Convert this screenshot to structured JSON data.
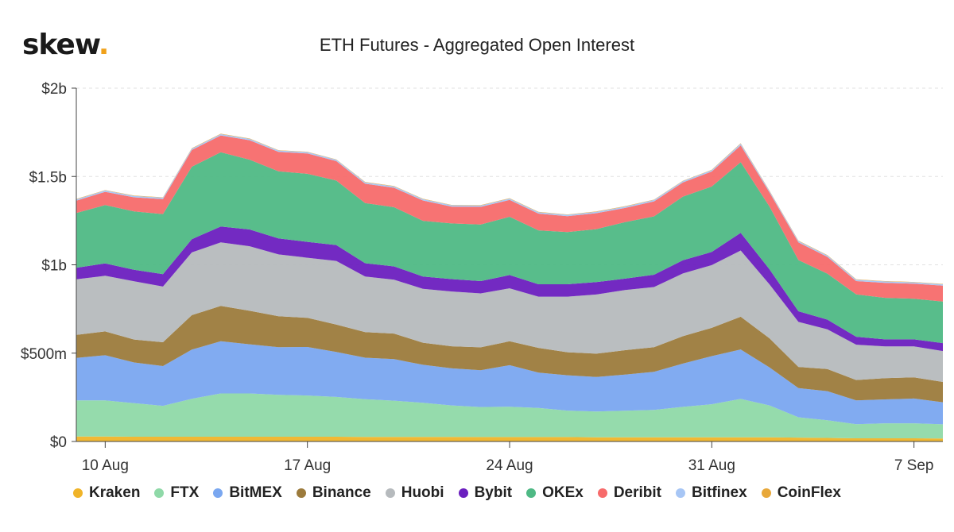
{
  "brand": {
    "logo_text": "skew",
    "logo_dot": "."
  },
  "chart_data": {
    "type": "area",
    "stacked": true,
    "title": "ETH Futures - Aggregated Open Interest",
    "xlabel": "",
    "ylabel": "",
    "ylim": [
      0,
      2000
    ],
    "unit": "USD millions",
    "y_ticks": [
      {
        "value": 0,
        "label": "$0"
      },
      {
        "value": 500,
        "label": "$500m"
      },
      {
        "value": 1000,
        "label": "$1b"
      },
      {
        "value": 1500,
        "label": "$1.5b"
      },
      {
        "value": 2000,
        "label": "$2b"
      }
    ],
    "x": [
      "2020-08-09",
      "2020-08-10",
      "2020-08-11",
      "2020-08-12",
      "2020-08-13",
      "2020-08-14",
      "2020-08-15",
      "2020-08-16",
      "2020-08-17",
      "2020-08-18",
      "2020-08-19",
      "2020-08-20",
      "2020-08-21",
      "2020-08-22",
      "2020-08-23",
      "2020-08-24",
      "2020-08-25",
      "2020-08-26",
      "2020-08-27",
      "2020-08-28",
      "2020-08-29",
      "2020-08-30",
      "2020-08-31",
      "2020-09-01",
      "2020-09-02",
      "2020-09-03",
      "2020-09-04",
      "2020-09-05",
      "2020-09-06",
      "2020-09-07",
      "2020-09-08"
    ],
    "x_ticks": [
      {
        "index": 1,
        "label": "10 Aug"
      },
      {
        "index": 8,
        "label": "17 Aug"
      },
      {
        "index": 15,
        "label": "24 Aug"
      },
      {
        "index": 22,
        "label": "31 Aug"
      },
      {
        "index": 29,
        "label": "7 Sep"
      }
    ],
    "grid": "horizontal",
    "legend_position": "bottom",
    "series": [
      {
        "name": "Kraken",
        "color": "#f0b429",
        "values": [
          28,
          28,
          27,
          27,
          27,
          27,
          27,
          27,
          27,
          27,
          26,
          26,
          26,
          26,
          25,
          25,
          25,
          25,
          24,
          24,
          24,
          24,
          24,
          24,
          24,
          22,
          20,
          18,
          18,
          18,
          17
        ]
      },
      {
        "name": "FTX",
        "color": "#8fd9a8",
        "values": [
          205,
          205,
          190,
          175,
          215,
          245,
          245,
          237,
          233,
          225,
          213,
          205,
          193,
          178,
          170,
          172,
          165,
          150,
          146,
          150,
          155,
          172,
          187,
          217,
          180,
          115,
          100,
          80,
          85,
          85,
          80
        ]
      },
      {
        "name": "BitMEX",
        "color": "#7aa7f0",
        "values": [
          240,
          255,
          230,
          225,
          278,
          295,
          278,
          270,
          275,
          255,
          235,
          235,
          215,
          210,
          208,
          235,
          200,
          200,
          195,
          205,
          215,
          245,
          272,
          280,
          215,
          165,
          165,
          135,
          135,
          140,
          125
        ]
      },
      {
        "name": "Binance",
        "color": "#9c7b3c",
        "values": [
          130,
          135,
          130,
          135,
          195,
          200,
          190,
          175,
          165,
          155,
          145,
          145,
          125,
          125,
          130,
          135,
          140,
          130,
          132,
          138,
          140,
          155,
          160,
          185,
          165,
          120,
          125,
          115,
          120,
          120,
          115
        ]
      },
      {
        "name": "Huobi",
        "color": "#b6babd",
        "values": [
          315,
          315,
          330,
          315,
          355,
          360,
          365,
          350,
          340,
          360,
          315,
          305,
          305,
          310,
          305,
          300,
          290,
          315,
          335,
          340,
          340,
          355,
          355,
          375,
          305,
          255,
          225,
          200,
          180,
          175,
          175
        ]
      },
      {
        "name": "Bybit",
        "color": "#6b1fbf",
        "values": [
          65,
          70,
          65,
          70,
          75,
          90,
          95,
          90,
          90,
          90,
          75,
          75,
          70,
          70,
          70,
          75,
          70,
          70,
          70,
          65,
          70,
          75,
          75,
          100,
          85,
          60,
          55,
          45,
          40,
          40,
          45
        ]
      },
      {
        "name": "OKEx",
        "color": "#4fb985",
        "values": [
          310,
          330,
          330,
          340,
          410,
          420,
          395,
          380,
          385,
          365,
          340,
          335,
          315,
          315,
          320,
          330,
          305,
          295,
          300,
          320,
          330,
          360,
          370,
          400,
          355,
          290,
          260,
          240,
          235,
          230,
          235
        ]
      },
      {
        "name": "Deribit",
        "color": "#f76b6b",
        "values": [
          70,
          75,
          80,
          85,
          95,
          95,
          110,
          110,
          115,
          110,
          110,
          110,
          115,
          95,
          100,
          95,
          95,
          90,
          90,
          80,
          85,
          80,
          85,
          95,
          80,
          100,
          95,
          75,
          85,
          85,
          90
        ]
      },
      {
        "name": "Bitfinex",
        "color": "#a7c6f5",
        "values": [
          8,
          8,
          8,
          8,
          8,
          8,
          8,
          8,
          8,
          8,
          8,
          8,
          8,
          8,
          8,
          8,
          8,
          8,
          8,
          8,
          8,
          8,
          8,
          10,
          8,
          8,
          8,
          8,
          8,
          8,
          8
        ]
      },
      {
        "name": "CoinFlex",
        "color": "#e8a83a",
        "values": [
          2,
          2,
          2,
          2,
          2,
          2,
          2,
          2,
          2,
          2,
          2,
          2,
          2,
          2,
          2,
          2,
          2,
          2,
          2,
          2,
          2,
          2,
          2,
          2,
          2,
          2,
          2,
          2,
          2,
          2,
          2
        ]
      }
    ]
  }
}
